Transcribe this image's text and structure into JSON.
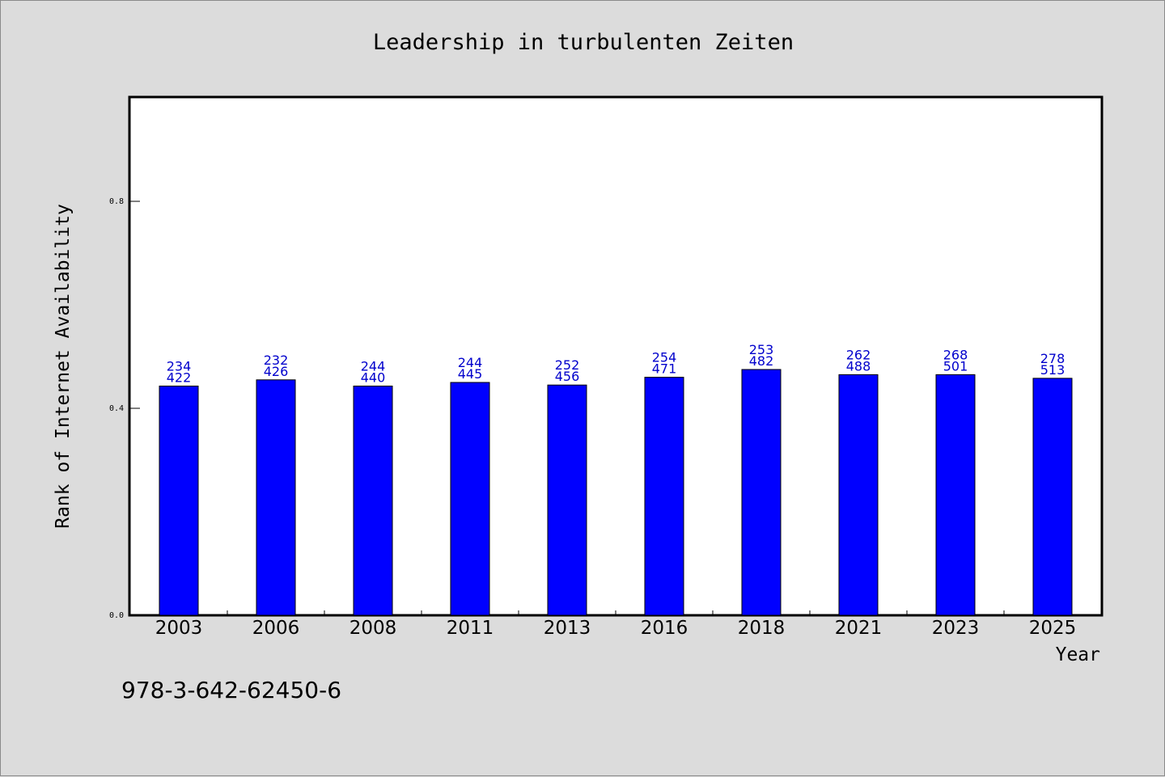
{
  "chart_data": {
    "type": "bar",
    "title": "Leadership in turbulenten Zeiten",
    "xlabel": "Year",
    "ylabel": "Rank of Internet Availability",
    "ylim": [
      0,
      1.0
    ],
    "yticks": [
      "0.0",
      "0.4",
      "0.8"
    ],
    "ytick_values": [
      0.0,
      0.4,
      0.8
    ],
    "categories": [
      "2003",
      "2006",
      "2008",
      "2011",
      "2013",
      "2016",
      "2018",
      "2021",
      "2023",
      "2025"
    ],
    "values": [
      0.443,
      0.455,
      0.443,
      0.45,
      0.445,
      0.46,
      0.475,
      0.465,
      0.465,
      0.458
    ],
    "label_top": [
      "234",
      "232",
      "244",
      "244",
      "252",
      "254",
      "253",
      "262",
      "268",
      "278"
    ],
    "label_bottom": [
      "422",
      "426",
      "440",
      "445",
      "456",
      "471",
      "482",
      "488",
      "501",
      "513"
    ],
    "bar_color": "#0000ff",
    "label_color": "#0000cc",
    "grid": false,
    "legend": "none"
  },
  "footer_text": "978-3-642-62450-6"
}
